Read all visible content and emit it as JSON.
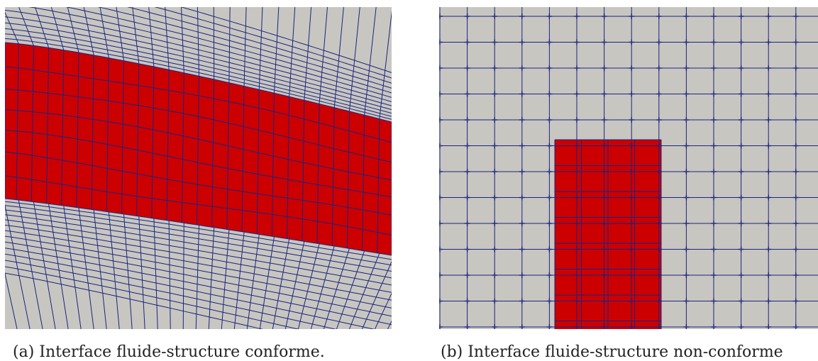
{
  "figure": {
    "left_caption": "(a) Interface fluide-structure conforme.",
    "right_caption": "(b) Interface fluide-structure non-conforme"
  },
  "colors": {
    "background": "#c8c6c0",
    "mesh_line": "#1a2580",
    "solid_fill": "#cc0000"
  }
}
